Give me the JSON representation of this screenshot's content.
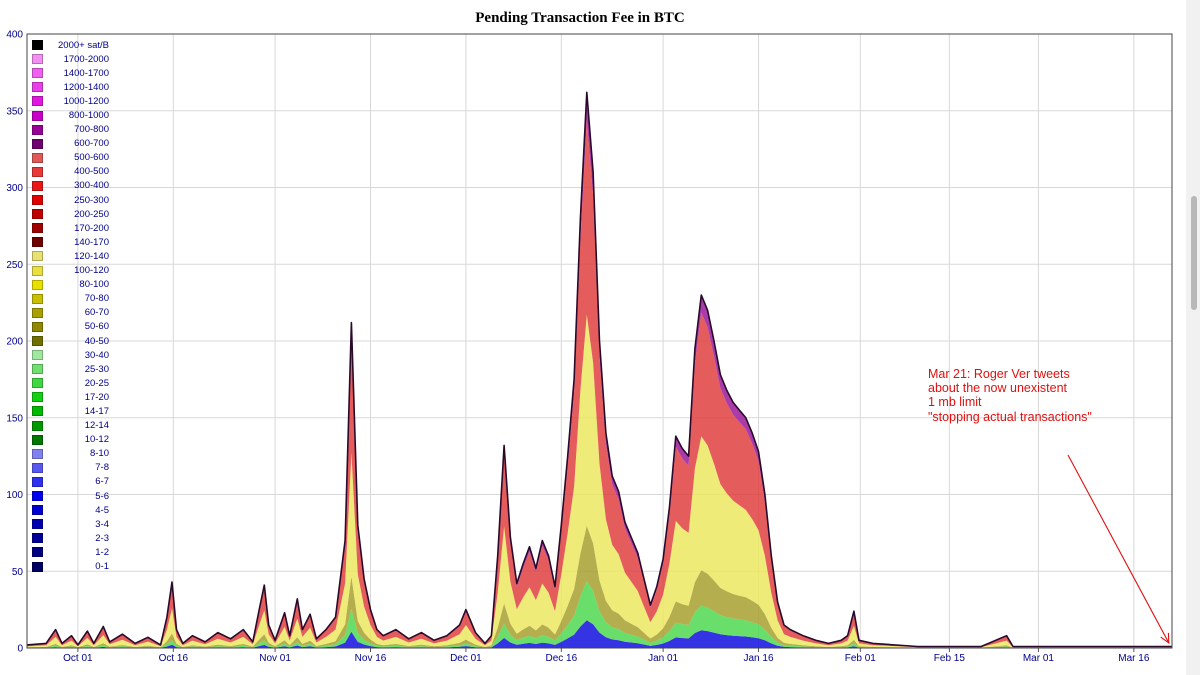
{
  "chart_data": {
    "type": "area",
    "title": "Pending Transaction Fee in BTC",
    "xlabel": "",
    "ylabel": "",
    "ylim": [
      0,
      400
    ],
    "xlim_days": [
      0,
      180
    ],
    "grid": true,
    "legend_position": "top-left",
    "x_ticks": [
      {
        "day": 8,
        "label": "Oct 01"
      },
      {
        "day": 23,
        "label": "Oct 16"
      },
      {
        "day": 39,
        "label": "Nov 01"
      },
      {
        "day": 54,
        "label": "Nov 16"
      },
      {
        "day": 69,
        "label": "Dec 01"
      },
      {
        "day": 84,
        "label": "Dec 16"
      },
      {
        "day": 100,
        "label": "Jan 01"
      },
      {
        "day": 115,
        "label": "Jan 16"
      },
      {
        "day": 131,
        "label": "Feb 01"
      },
      {
        "day": 145,
        "label": "Feb 15"
      },
      {
        "day": 159,
        "label": "Mar 01"
      },
      {
        "day": 174,
        "label": "Mar 16"
      }
    ],
    "y_ticks": [
      0,
      50,
      100,
      150,
      200,
      250,
      300,
      350,
      400
    ],
    "total_series": [
      [
        0,
        2
      ],
      [
        3,
        3
      ],
      [
        4.5,
        12
      ],
      [
        5.5,
        3
      ],
      [
        7,
        8
      ],
      [
        8,
        2
      ],
      [
        9.5,
        11
      ],
      [
        10.5,
        3
      ],
      [
        12,
        14
      ],
      [
        13,
        4
      ],
      [
        15,
        9
      ],
      [
        17,
        3
      ],
      [
        19,
        7
      ],
      [
        21,
        2
      ],
      [
        22,
        20
      ],
      [
        22.8,
        43
      ],
      [
        23.5,
        12
      ],
      [
        24.5,
        3
      ],
      [
        26,
        8
      ],
      [
        28,
        4
      ],
      [
        30,
        10
      ],
      [
        32,
        6
      ],
      [
        34,
        12
      ],
      [
        35.5,
        4
      ],
      [
        36.5,
        25
      ],
      [
        37.3,
        41
      ],
      [
        38,
        15
      ],
      [
        39,
        5
      ],
      [
        40.5,
        23
      ],
      [
        41.3,
        8
      ],
      [
        42.5,
        32
      ],
      [
        43.3,
        12
      ],
      [
        44.5,
        22
      ],
      [
        45.5,
        6
      ],
      [
        47,
        12
      ],
      [
        48.5,
        20
      ],
      [
        50,
        70
      ],
      [
        51,
        212
      ],
      [
        52,
        80
      ],
      [
        53,
        45
      ],
      [
        54,
        25
      ],
      [
        55,
        12
      ],
      [
        56,
        8
      ],
      [
        58,
        12
      ],
      [
        60,
        6
      ],
      [
        62,
        10
      ],
      [
        64,
        5
      ],
      [
        66,
        8
      ],
      [
        68,
        15
      ],
      [
        69,
        25
      ],
      [
        70.5,
        10
      ],
      [
        72,
        3
      ],
      [
        73,
        8
      ],
      [
        74,
        60
      ],
      [
        75,
        132
      ],
      [
        76,
        72
      ],
      [
        77,
        42
      ],
      [
        78,
        55
      ],
      [
        79,
        66
      ],
      [
        80,
        52
      ],
      [
        81,
        70
      ],
      [
        82,
        60
      ],
      [
        83,
        40
      ],
      [
        84,
        80
      ],
      [
        85,
        125
      ],
      [
        86,
        175
      ],
      [
        87,
        280
      ],
      [
        88,
        362
      ],
      [
        89,
        310
      ],
      [
        90,
        200
      ],
      [
        91,
        140
      ],
      [
        92,
        112
      ],
      [
        93,
        102
      ],
      [
        94,
        82
      ],
      [
        95,
        72
      ],
      [
        96,
        62
      ],
      [
        97,
        45
      ],
      [
        98,
        28
      ],
      [
        99,
        40
      ],
      [
        100,
        58
      ],
      [
        101,
        92
      ],
      [
        102,
        138
      ],
      [
        103,
        130
      ],
      [
        104,
        125
      ],
      [
        105,
        195
      ],
      [
        106,
        230
      ],
      [
        107,
        220
      ],
      [
        108,
        200
      ],
      [
        109,
        178
      ],
      [
        110,
        168
      ],
      [
        111,
        160
      ],
      [
        112,
        155
      ],
      [
        113,
        150
      ],
      [
        114,
        140
      ],
      [
        115,
        128
      ],
      [
        116,
        100
      ],
      [
        117,
        60
      ],
      [
        118,
        30
      ],
      [
        119,
        15
      ],
      [
        120,
        12
      ],
      [
        122,
        8
      ],
      [
        124,
        5
      ],
      [
        126,
        3
      ],
      [
        128,
        5
      ],
      [
        129,
        8
      ],
      [
        130,
        24
      ],
      [
        130.8,
        5
      ],
      [
        133,
        3
      ],
      [
        140,
        1
      ],
      [
        150,
        1
      ],
      [
        154,
        8
      ],
      [
        155,
        1
      ],
      [
        180,
        1
      ]
    ],
    "band_fractions": {
      "0-20 (blue)": 0.05,
      "20-40 (green)": 0.07,
      "40-100 (olive)": 0.1,
      "80-140 (yellow)": 0.38,
      "140-600 (red)": 0.35,
      "600+ (purple)": 0.05
    },
    "legend": [
      {
        "label": "2000+ sat/B",
        "color": "#000000"
      },
      {
        "label": "1700-2000",
        "color": "#f28ff2"
      },
      {
        "label": "1400-1700",
        "color": "#f060f0"
      },
      {
        "label": "1200-1400",
        "color": "#e840e8"
      },
      {
        "label": "1000-1200",
        "color": "#e018e0"
      },
      {
        "label": "800-1000",
        "color": "#c800c8"
      },
      {
        "label": "700-800",
        "color": "#980098"
      },
      {
        "label": "600-700",
        "color": "#700070"
      },
      {
        "label": "500-600",
        "color": "#e05858"
      },
      {
        "label": "400-500",
        "color": "#e83838"
      },
      {
        "label": "300-400",
        "color": "#e81818"
      },
      {
        "label": "250-300",
        "color": "#e00000"
      },
      {
        "label": "200-250",
        "color": "#c00000"
      },
      {
        "label": "170-200",
        "color": "#a00000"
      },
      {
        "label": "140-170",
        "color": "#700000"
      },
      {
        "label": "120-140",
        "color": "#e8e070"
      },
      {
        "label": "100-120",
        "color": "#e8e040"
      },
      {
        "label": "80-100",
        "color": "#e8e000"
      },
      {
        "label": "70-80",
        "color": "#c8c000"
      },
      {
        "label": "60-70",
        "color": "#a8a000"
      },
      {
        "label": "50-60",
        "color": "#908800"
      },
      {
        "label": "40-50",
        "color": "#707000"
      },
      {
        "label": "30-40",
        "color": "#a0e8a0"
      },
      {
        "label": "25-30",
        "color": "#70e070"
      },
      {
        "label": "20-25",
        "color": "#40d840"
      },
      {
        "label": "17-20",
        "color": "#10d010"
      },
      {
        "label": "14-17",
        "color": "#00b800"
      },
      {
        "label": "12-14",
        "color": "#009800"
      },
      {
        "label": "10-12",
        "color": "#007800"
      },
      {
        "label": "8-10",
        "color": "#8080f0"
      },
      {
        "label": "7-8",
        "color": "#5858f0"
      },
      {
        "label": "6-7",
        "color": "#3030f0"
      },
      {
        "label": "5-6",
        "color": "#0000f0"
      },
      {
        "label": "4-5",
        "color": "#0000d0"
      },
      {
        "label": "3-4",
        "color": "#0000b0"
      },
      {
        "label": "2-3",
        "color": "#000098"
      },
      {
        "label": "1-2",
        "color": "#000080"
      },
      {
        "label": "0-1",
        "color": "#000060"
      }
    ],
    "annotation": {
      "lines": [
        "Mar 21: Roger Ver tweets",
        "about the now unexistent",
        "1 mb limit",
        "\"stopping actual transactions\""
      ],
      "color": "#e01010",
      "arrow_target_day": 179.5,
      "arrow_target_value": 2
    }
  }
}
